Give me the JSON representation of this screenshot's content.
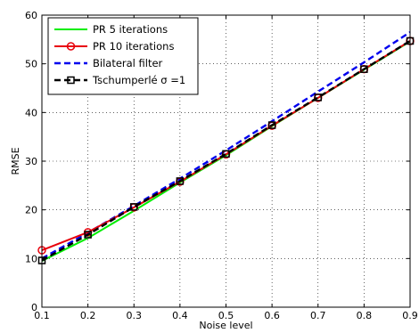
{
  "chart_data": {
    "type": "line",
    "title": "",
    "xlabel": "Noise level",
    "ylabel": "RMSE",
    "xlim": [
      0.1,
      0.9
    ],
    "ylim": [
      0,
      60
    ],
    "xticks": [
      "0.1",
      "0.2",
      "0.3",
      "0.4",
      "0.5",
      "0.6",
      "0.7",
      "0.8",
      "0.9"
    ],
    "yticks": [
      "0",
      "10",
      "20",
      "30",
      "40",
      "50",
      "60"
    ],
    "grid": true,
    "legend_position": "top-left",
    "x": [
      0.1,
      0.2,
      0.3,
      0.4,
      0.5,
      0.6,
      0.7,
      0.8,
      0.9
    ],
    "series": [
      {
        "name": "PR 5 iterations",
        "color": "#00ee00",
        "style": "solid",
        "marker": "none",
        "values": [
          9.5,
          14.2,
          19.8,
          25.6,
          31.2,
          37.2,
          43.0,
          48.8,
          54.6
        ]
      },
      {
        "name": "PR 10 iterations",
        "color": "#e8000b",
        "style": "solid",
        "marker": "circle",
        "values": [
          11.7,
          15.4,
          20.5,
          25.8,
          31.4,
          37.3,
          43.0,
          48.9,
          54.7
        ]
      },
      {
        "name": "Bilateral filter",
        "color": "#0000ee",
        "style": "dashed",
        "marker": "none",
        "values": [
          10.0,
          15.3,
          20.8,
          26.4,
          32.2,
          38.2,
          44.3,
          50.3,
          56.5
        ]
      },
      {
        "name": "Tschumperlé σ =1",
        "color": "#000000",
        "style": "dashed",
        "marker": "square",
        "values": [
          9.6,
          14.9,
          20.6,
          25.9,
          31.5,
          37.4,
          43.1,
          48.9,
          54.7
        ]
      }
    ]
  }
}
